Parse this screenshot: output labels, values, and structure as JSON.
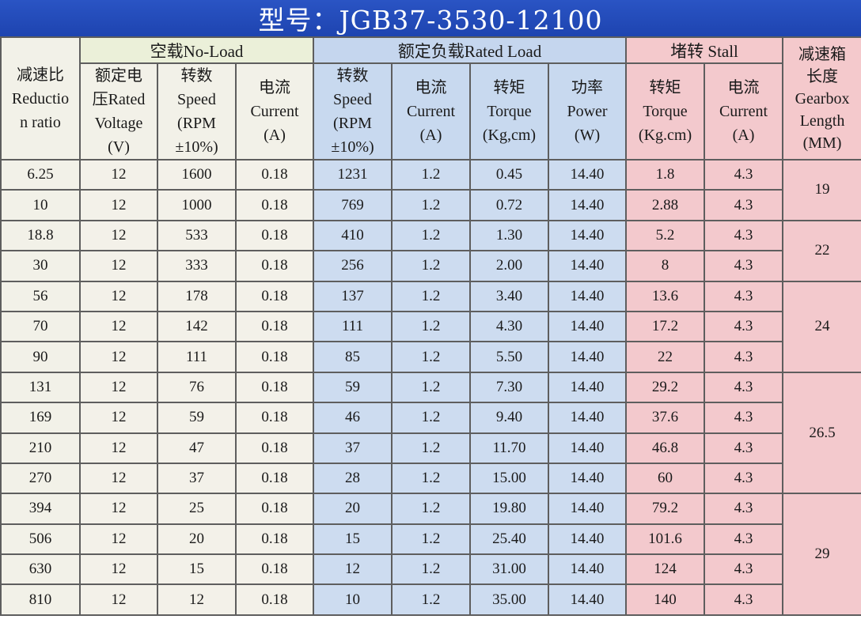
{
  "title": "型号：JGB37-3530-12100",
  "groups": {
    "no_load": "空载No-Load",
    "rated_load": "额定负载Rated Load",
    "stall": "堵转 Stall"
  },
  "headers": {
    "ratio": [
      "减速比",
      "Reductio",
      "n ratio"
    ],
    "voltage": [
      "额定电",
      "压Rated",
      "Voltage",
      "(V)"
    ],
    "nl_speed": [
      "转数",
      "Speed",
      "(RPM",
      "±10%)"
    ],
    "nl_current": [
      "电流",
      "Current",
      "(A)"
    ],
    "rl_speed": [
      "转数",
      "Speed",
      "(RPM",
      "±10%)"
    ],
    "rl_current": [
      "电流",
      "Current",
      "(A)"
    ],
    "rl_torque": [
      "转矩",
      "Torque",
      "(Kg,cm)"
    ],
    "rl_power": [
      "功率",
      "Power",
      "(W)"
    ],
    "st_torque": [
      "转矩",
      "Torque",
      "(Kg.cm)"
    ],
    "st_current": [
      "电流",
      "Current",
      "(A)"
    ],
    "length": [
      "减速箱",
      "长度",
      "Gearbox",
      "Length",
      "(MM)"
    ]
  },
  "rows": [
    [
      "6.25",
      "12",
      "1600",
      "0.18",
      "1231",
      "1.2",
      "0.45",
      "14.40",
      "1.8",
      "4.3"
    ],
    [
      "10",
      "12",
      "1000",
      "0.18",
      "769",
      "1.2",
      "0.72",
      "14.40",
      "2.88",
      "4.3"
    ],
    [
      "18.8",
      "12",
      "533",
      "0.18",
      "410",
      "1.2",
      "1.30",
      "14.40",
      "5.2",
      "4.3"
    ],
    [
      "30",
      "12",
      "333",
      "0.18",
      "256",
      "1.2",
      "2.00",
      "14.40",
      "8",
      "4.3"
    ],
    [
      "56",
      "12",
      "178",
      "0.18",
      "137",
      "1.2",
      "3.40",
      "14.40",
      "13.6",
      "4.3"
    ],
    [
      "70",
      "12",
      "142",
      "0.18",
      "111",
      "1.2",
      "4.30",
      "14.40",
      "17.2",
      "4.3"
    ],
    [
      "90",
      "12",
      "111",
      "0.18",
      "85",
      "1.2",
      "5.50",
      "14.40",
      "22",
      "4.3"
    ],
    [
      "131",
      "12",
      "76",
      "0.18",
      "59",
      "1.2",
      "7.30",
      "14.40",
      "29.2",
      "4.3"
    ],
    [
      "169",
      "12",
      "59",
      "0.18",
      "46",
      "1.2",
      "9.40",
      "14.40",
      "37.6",
      "4.3"
    ],
    [
      "210",
      "12",
      "47",
      "0.18",
      "37",
      "1.2",
      "11.70",
      "14.40",
      "46.8",
      "4.3"
    ],
    [
      "270",
      "12",
      "37",
      "0.18",
      "28",
      "1.2",
      "15.00",
      "14.40",
      "60",
      "4.3"
    ],
    [
      "394",
      "12",
      "25",
      "0.18",
      "20",
      "1.2",
      "19.80",
      "14.40",
      "79.2",
      "4.3"
    ],
    [
      "506",
      "12",
      "20",
      "0.18",
      "15",
      "1.2",
      "25.40",
      "14.40",
      "101.6",
      "4.3"
    ],
    [
      "630",
      "12",
      "15",
      "0.18",
      "12",
      "1.2",
      "31.00",
      "14.40",
      "124",
      "4.3"
    ],
    [
      "810",
      "12",
      "12",
      "0.18",
      "10",
      "1.2",
      "35.00",
      "14.40",
      "140",
      "4.3"
    ]
  ],
  "gearbox_lengths": [
    {
      "value": "19",
      "rows": 2
    },
    {
      "value": "22",
      "rows": 2
    },
    {
      "value": "24",
      "rows": 3
    },
    {
      "value": "26.5",
      "rows": 4
    },
    {
      "value": "29",
      "rows": 4
    }
  ],
  "colors": {
    "title_bar": "#2a54c4",
    "no_load": "#ebf0d9",
    "rated_load": "#c5d6ee",
    "stall": "#f4c9cc"
  }
}
